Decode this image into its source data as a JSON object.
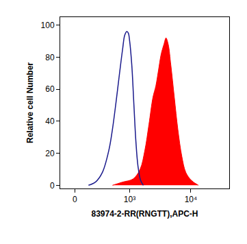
{
  "chart_data": {
    "type": "line",
    "x_label": "83974-2-RR(RNGTT),APC-H",
    "y_label": "Relative cell Number",
    "xlim": [
      -150,
      42000
    ],
    "xticks": [
      0,
      {
        "value": 1000,
        "label": "10³"
      },
      {
        "value": 10000,
        "label": "10⁴"
      }
    ],
    "ylim": [
      -2,
      105
    ],
    "yticks": [
      0,
      20,
      40,
      60,
      80,
      100
    ],
    "grid": false,
    "series": [
      {
        "type": "line",
        "color": "#1a1a8c",
        "x": [
          140,
          223,
          320,
          432,
          503,
          584,
          673,
          760,
          830,
          901,
          951,
          1001,
          1087,
          1179,
          1268,
          1376,
          1522,
          1685
        ],
        "values": [
          0,
          2,
          8,
          22,
          35,
          52,
          70,
          85,
          94,
          96,
          95,
          90,
          75,
          50,
          28,
          12,
          3,
          0
        ]
      },
      {
        "type": "area",
        "color": "#ff0000",
        "x": [
          503,
          760,
          1145,
          1491,
          1789,
          2083,
          2424,
          2699,
          2987,
          3301,
          3655,
          3956,
          4297,
          4742,
          5397,
          6157,
          7153,
          8305,
          10244,
          13283
        ],
        "values": [
          0,
          2,
          4,
          10,
          22,
          38,
          55,
          62,
          72,
          82,
          88,
          92,
          88,
          75,
          55,
          35,
          18,
          8,
          3,
          0
        ]
      }
    ]
  }
}
